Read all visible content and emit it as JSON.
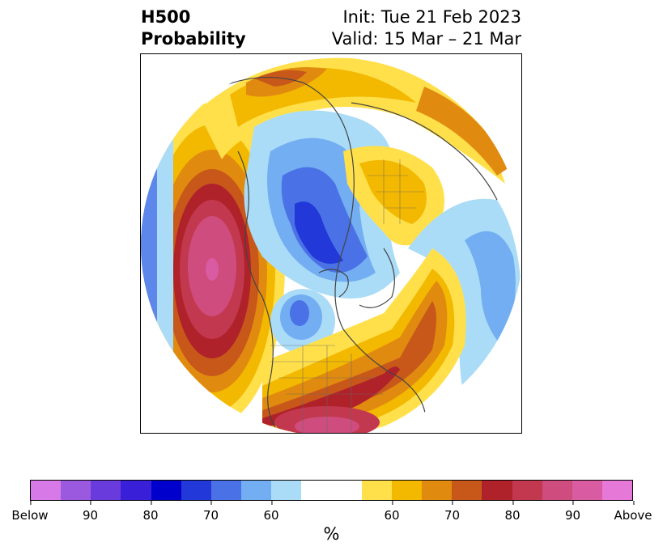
{
  "title": {
    "left_line1": "H500",
    "left_line2": "Probability",
    "right_line1": "Init: Tue 21 Feb 2023",
    "right_line2": "Valid: 15 Mar – 21 Mar"
  },
  "colorbar": {
    "colors": [
      "#d77ae8",
      "#9b59e0",
      "#6a3bdc",
      "#3a1fd8",
      "#0000cc",
      "#2238d8",
      "#4a72e6",
      "#72aef1",
      "#aadcf7",
      "#ffffff",
      "#ffffff",
      "#ffe04a",
      "#f3b800",
      "#e08b10",
      "#c8581a",
      "#b0222a",
      "#c2384f",
      "#cf4c7e",
      "#d95ca3",
      "#e679d8"
    ],
    "tick_labels": [
      "Below",
      "90",
      "80",
      "70",
      "60",
      "60",
      "70",
      "80",
      "90",
      "Above"
    ],
    "unit_label": "%"
  }
}
